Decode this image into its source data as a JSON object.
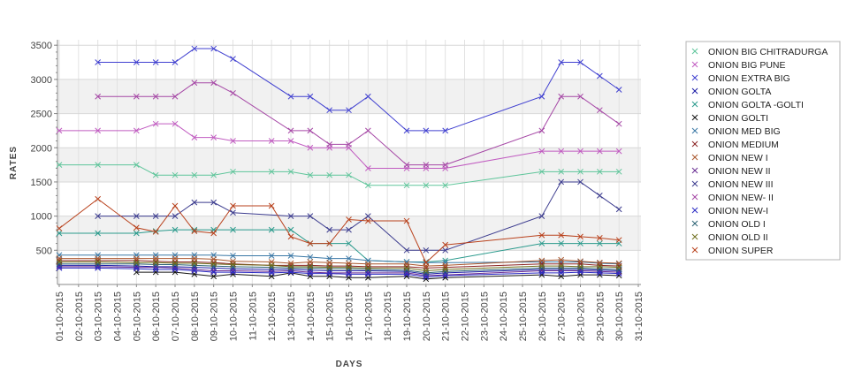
{
  "chart_data": {
    "type": "line",
    "xlabel": "DAYS",
    "ylabel": "RATES",
    "ylim": [
      0,
      3580
    ],
    "y_ticks": [
      500,
      1000,
      1500,
      2000,
      2500,
      3000,
      3500
    ],
    "x_ticks": [
      "01-10-2015",
      "02-10-2015",
      "03-10-2015",
      "04-10-2015",
      "05-10-2015",
      "06-10-2015",
      "07-10-2015",
      "08-10-2015",
      "09-10-2015",
      "10-10-2015",
      "11-10-2015",
      "12-10-2015",
      "13-10-2015",
      "14-10-2015",
      "15-10-2015",
      "16-10-2015",
      "17-10-2015",
      "18-10-2015",
      "19-10-2015",
      "20-10-2015",
      "21-10-2015",
      "22-10-2015",
      "23-10-2015",
      "24-10-2015",
      "25-10-2015",
      "26-10-2015",
      "27-10-2015",
      "28-10-2015",
      "29-10-2015",
      "30-10-2015",
      "31-10-2015"
    ],
    "grid": true,
    "legend_position": "right",
    "x": [
      "01-10-2015",
      "03-10-2015",
      "05-10-2015",
      "06-10-2015",
      "07-10-2015",
      "08-10-2015",
      "09-10-2015",
      "10-10-2015",
      "12-10-2015",
      "13-10-2015",
      "14-10-2015",
      "15-10-2015",
      "16-10-2015",
      "17-10-2015",
      "19-10-2015",
      "20-10-2015",
      "21-10-2015",
      "26-10-2015",
      "27-10-2015",
      "28-10-2015",
      "29-10-2015",
      "30-10-2015"
    ],
    "series": [
      {
        "name": "ONION BIG CHITRADURGA",
        "color": "#5ec59a",
        "values": [
          1750,
          1750,
          1750,
          1600,
          1600,
          1600,
          1600,
          1650,
          1650,
          1650,
          1600,
          1600,
          1600,
          1450,
          1450,
          1450,
          1450,
          1650,
          1650,
          1650,
          1650,
          1650
        ]
      },
      {
        "name": "ONION BIG PUNE",
        "color": "#c15cc1",
        "values": [
          2250,
          2250,
          2250,
          2350,
          2350,
          2150,
          2150,
          2100,
          2100,
          2100,
          2000,
          2000,
          2000,
          1700,
          1700,
          1700,
          1700,
          1950,
          1950,
          1950,
          1950,
          1950
        ]
      },
      {
        "name": "ONION EXTRA BIG",
        "color": "#4040d0",
        "values": [
          null,
          3250,
          3250,
          3250,
          3250,
          3450,
          3450,
          3300,
          null,
          2750,
          2750,
          2550,
          2550,
          2750,
          2250,
          2250,
          2250,
          2750,
          3250,
          3250,
          3050,
          2850
        ]
      },
      {
        "name": "ONION GOLTA",
        "color": "#1c1ca6",
        "values": [
          280,
          280,
          270,
          260,
          260,
          250,
          240,
          230,
          220,
          220,
          210,
          200,
          200,
          200,
          190,
          150,
          170,
          220,
          220,
          220,
          210,
          200
        ]
      },
      {
        "name": "ONION GOLTA -GOLTI",
        "color": "#2a9a8c",
        "values": [
          750,
          750,
          750,
          780,
          800,
          800,
          800,
          800,
          800,
          800,
          600,
          600,
          600,
          350,
          330,
          330,
          350,
          600,
          600,
          600,
          600,
          600
        ]
      },
      {
        "name": "ONION GOLTI",
        "color": "#141414",
        "values": [
          null,
          null,
          180,
          180,
          180,
          150,
          120,
          150,
          120,
          170,
          120,
          120,
          100,
          100,
          120,
          80,
          100,
          140,
          120,
          140,
          140,
          130
        ]
      },
      {
        "name": "ONION MED BIG",
        "color": "#3a78a6",
        "values": [
          430,
          430,
          430,
          430,
          430,
          430,
          430,
          420,
          420,
          420,
          400,
          380,
          380,
          350,
          330,
          320,
          320,
          330,
          330,
          330,
          310,
          300
        ]
      },
      {
        "name": "ONION MEDIUM",
        "color": "#8b2323",
        "values": [
          350,
          350,
          350,
          340,
          330,
          330,
          320,
          300,
          280,
          280,
          280,
          270,
          270,
          260,
          260,
          240,
          250,
          300,
          300,
          300,
          280,
          270
        ]
      },
      {
        "name": "ONION NEW I",
        "color": "#a9562c",
        "values": [
          380,
          380,
          380,
          380,
          380,
          380,
          370,
          340,
          330,
          310,
          330,
          320,
          310,
          300,
          300,
          270,
          280,
          350,
          360,
          340,
          320,
          310
        ]
      },
      {
        "name": "ONION NEW II",
        "color": "#6a2d92",
        "values": [
          260,
          260,
          250,
          250,
          240,
          220,
          200,
          200,
          190,
          200,
          180,
          170,
          170,
          170,
          170,
          130,
          140,
          200,
          200,
          200,
          190,
          180
        ]
      },
      {
        "name": "ONION NEW III",
        "color": "#3b3b8e",
        "values": [
          null,
          1000,
          1000,
          1000,
          1000,
          1200,
          1200,
          1050,
          null,
          1000,
          1000,
          800,
          800,
          1000,
          500,
          500,
          500,
          1000,
          1500,
          1500,
          1300,
          1100
        ]
      },
      {
        "name": "ONION NEW- II",
        "color": "#a648a6",
        "values": [
          null,
          2750,
          2750,
          2750,
          2750,
          2950,
          2950,
          2800,
          null,
          2250,
          2250,
          2050,
          2050,
          2250,
          1750,
          1750,
          1750,
          2250,
          2750,
          2750,
          2550,
          2350
        ]
      },
      {
        "name": "ONION NEW-I",
        "color": "#2b2bc4",
        "values": [
          240,
          240,
          230,
          220,
          220,
          200,
          180,
          180,
          170,
          180,
          160,
          160,
          150,
          150,
          150,
          110,
          130,
          170,
          170,
          180,
          170,
          160
        ]
      },
      {
        "name": "ONION OLD I",
        "color": "#2c6374",
        "values": [
          300,
          300,
          300,
          290,
          290,
          280,
          270,
          260,
          250,
          240,
          240,
          230,
          230,
          220,
          210,
          170,
          190,
          240,
          240,
          240,
          230,
          220
        ]
      },
      {
        "name": "ONION OLD II",
        "color": "#6f6f1e",
        "values": [
          330,
          330,
          320,
          320,
          310,
          310,
          300,
          290,
          280,
          260,
          260,
          250,
          250,
          240,
          240,
          200,
          220,
          270,
          270,
          260,
          260,
          250
        ]
      },
      {
        "name": "ONION SUPER",
        "color": "#b9421d",
        "values": [
          820,
          1250,
          830,
          770,
          1150,
          780,
          750,
          1150,
          1150,
          700,
          600,
          600,
          950,
          930,
          930,
          320,
          580,
          720,
          720,
          700,
          680,
          650
        ]
      }
    ]
  }
}
